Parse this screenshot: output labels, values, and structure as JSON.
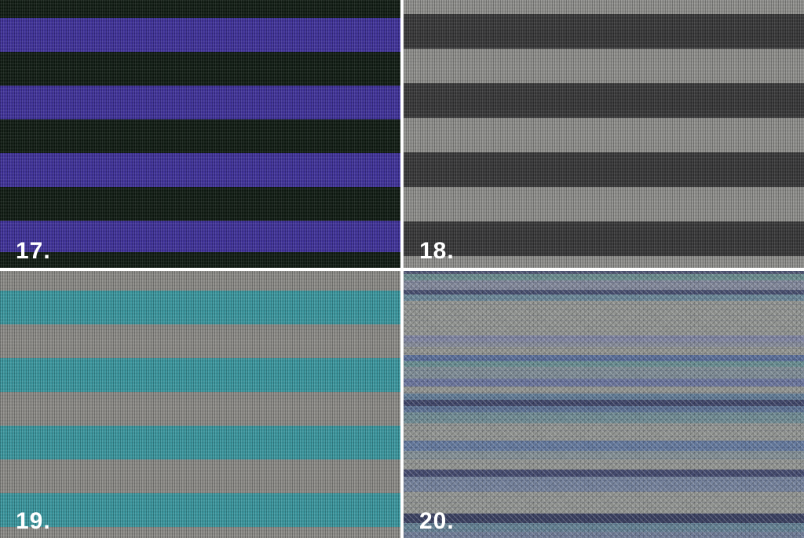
{
  "collage": {
    "description": "Preview grid of four knitted fabric textures",
    "divider_color": "#ffffff",
    "label_color": "#ffffff"
  },
  "swatches": [
    {
      "label": "17.",
      "pattern": "horizontal-stripes",
      "colors": {
        "stripe_a": "#0f1b12",
        "stripe_b": "#3f319b"
      }
    },
    {
      "label": "18.",
      "pattern": "horizontal-stripes",
      "colors": {
        "stripe_a": "#373738",
        "stripe_b": "#90908d"
      }
    },
    {
      "label": "19.",
      "pattern": "horizontal-stripes",
      "colors": {
        "stripe_a": "#8d8c88",
        "stripe_b": "#3a98a0"
      }
    },
    {
      "label": "20.",
      "pattern": "space-dyed-melange",
      "colors": {
        "base": "#949692",
        "navy": "#1e2a6e",
        "blue": "#4a5cae",
        "teal": "#3c9097"
      }
    }
  ]
}
